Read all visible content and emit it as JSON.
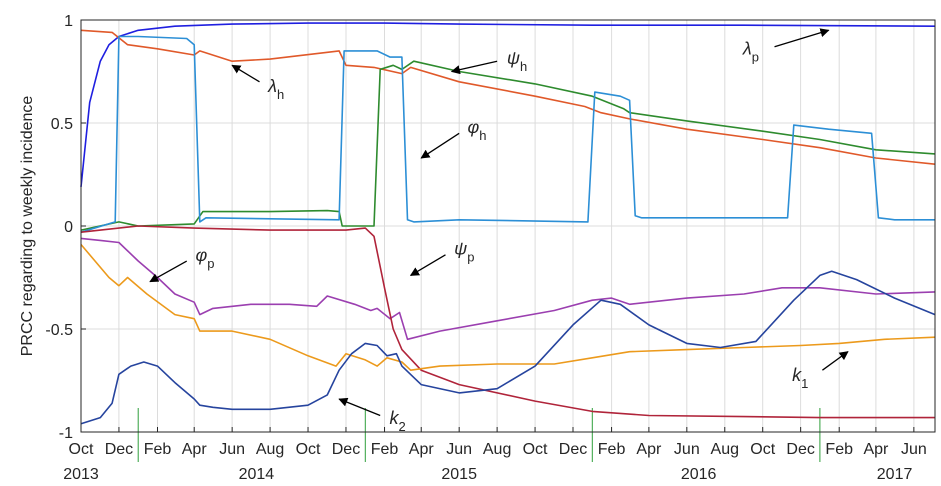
{
  "chart_data": {
    "type": "line",
    "title": "",
    "xlabel": "",
    "ylabel": "PRCC regarding to weekly incidence",
    "x_range": [
      "2013-10-01",
      "2017-07-05"
    ],
    "ylim": [
      -1,
      1
    ],
    "grid": true,
    "legend": "none",
    "y_ticks": [
      {
        "value": 1,
        "label": "1"
      },
      {
        "value": 0.5,
        "label": "0.5"
      },
      {
        "value": 0,
        "label": "0"
      },
      {
        "value": -0.5,
        "label": "-0.5"
      },
      {
        "value": -1,
        "label": "-1"
      }
    ],
    "x_ticks": [
      {
        "date": "2013-10-01",
        "label": "Oct"
      },
      {
        "date": "2013-12-01",
        "label": "Dec"
      },
      {
        "date": "2014-02-01",
        "label": "Feb"
      },
      {
        "date": "2014-04-01",
        "label": "Apr"
      },
      {
        "date": "2014-06-01",
        "label": "Jun"
      },
      {
        "date": "2014-08-01",
        "label": "Aug"
      },
      {
        "date": "2014-10-01",
        "label": "Oct"
      },
      {
        "date": "2014-12-01",
        "label": "Dec"
      },
      {
        "date": "2015-02-01",
        "label": "Feb"
      },
      {
        "date": "2015-04-01",
        "label": "Apr"
      },
      {
        "date": "2015-06-01",
        "label": "Jun"
      },
      {
        "date": "2015-08-01",
        "label": "Aug"
      },
      {
        "date": "2015-10-01",
        "label": "Oct"
      },
      {
        "date": "2015-12-01",
        "label": "Dec"
      },
      {
        "date": "2016-02-01",
        "label": "Feb"
      },
      {
        "date": "2016-04-01",
        "label": "Apr"
      },
      {
        "date": "2016-06-01",
        "label": "Jun"
      },
      {
        "date": "2016-08-01",
        "label": "Aug"
      },
      {
        "date": "2016-10-01",
        "label": "Oct"
      },
      {
        "date": "2016-12-01",
        "label": "Dec"
      },
      {
        "date": "2017-02-01",
        "label": "Feb"
      },
      {
        "date": "2017-04-01",
        "label": "Apr"
      },
      {
        "date": "2017-06-01",
        "label": "Jun"
      }
    ],
    "year_labels": [
      {
        "date": "2013-10-01",
        "label": "2013"
      },
      {
        "date": "2014-07-10",
        "label": "2014"
      },
      {
        "date": "2015-06-01",
        "label": "2015"
      },
      {
        "date": "2016-06-20",
        "label": "2016"
      },
      {
        "date": "2017-05-01",
        "label": "2017"
      }
    ],
    "year_markers": [
      "2014-01-01",
      "2015-01-01",
      "2016-01-01",
      "2017-01-01"
    ],
    "series": [
      {
        "name": "λp",
        "color": "#1f1fe0",
        "points": [
          [
            "2013-10-01",
            0.19
          ],
          [
            "2013-10-15",
            0.6
          ],
          [
            "2013-11-01",
            0.8
          ],
          [
            "2013-11-15",
            0.88
          ],
          [
            "2013-12-01",
            0.92
          ],
          [
            "2014-01-01",
            0.95
          ],
          [
            "2014-03-01",
            0.97
          ],
          [
            "2014-06-01",
            0.98
          ],
          [
            "2014-10-01",
            0.985
          ],
          [
            "2015-02-01",
            0.985
          ],
          [
            "2015-06-01",
            0.98
          ],
          [
            "2016-01-01",
            0.975
          ],
          [
            "2016-09-01",
            0.975
          ],
          [
            "2017-07-05",
            0.97
          ]
        ]
      },
      {
        "name": "λh",
        "color": "#e0592a",
        "points": [
          [
            "2013-10-01",
            0.95
          ],
          [
            "2013-11-20",
            0.94
          ],
          [
            "2013-12-15",
            0.88
          ],
          [
            "2014-02-01",
            0.86
          ],
          [
            "2014-04-01",
            0.83
          ],
          [
            "2014-04-10",
            0.85
          ],
          [
            "2014-06-01",
            0.8
          ],
          [
            "2014-08-01",
            0.81
          ],
          [
            "2014-11-20",
            0.85
          ],
          [
            "2014-12-01",
            0.78
          ],
          [
            "2015-01-15",
            0.77
          ],
          [
            "2015-03-01",
            0.74
          ],
          [
            "2015-03-15",
            0.77
          ],
          [
            "2015-06-01",
            0.7
          ],
          [
            "2015-10-01",
            0.63
          ],
          [
            "2015-12-20",
            0.58
          ],
          [
            "2016-01-15",
            0.55
          ],
          [
            "2016-03-01",
            0.52
          ],
          [
            "2016-06-01",
            0.47
          ],
          [
            "2016-10-01",
            0.42
          ],
          [
            "2017-01-01",
            0.38
          ],
          [
            "2017-04-01",
            0.33
          ],
          [
            "2017-07-05",
            0.3
          ]
        ]
      },
      {
        "name": "ψh",
        "color": "#2e8b2e",
        "points": [
          [
            "2013-10-01",
            -0.02
          ],
          [
            "2013-12-01",
            0.02
          ],
          [
            "2014-01-01",
            0.0
          ],
          [
            "2014-04-01",
            0.01
          ],
          [
            "2014-04-15",
            0.07
          ],
          [
            "2014-06-01",
            0.07
          ],
          [
            "2014-08-01",
            0.07
          ],
          [
            "2014-11-01",
            0.075
          ],
          [
            "2014-11-20",
            0.07
          ],
          [
            "2014-11-25",
            0.0
          ],
          [
            "2015-01-15",
            0.0
          ],
          [
            "2015-01-25",
            0.76
          ],
          [
            "2015-02-15",
            0.78
          ],
          [
            "2015-03-01",
            0.76
          ],
          [
            "2015-03-20",
            0.8
          ],
          [
            "2015-06-01",
            0.75
          ],
          [
            "2015-10-01",
            0.69
          ],
          [
            "2016-01-01",
            0.63
          ],
          [
            "2016-02-20",
            0.57
          ],
          [
            "2016-03-01",
            0.55
          ],
          [
            "2016-06-01",
            0.51
          ],
          [
            "2016-10-01",
            0.46
          ],
          [
            "2017-01-01",
            0.42
          ],
          [
            "2017-04-01",
            0.37
          ],
          [
            "2017-07-05",
            0.35
          ]
        ]
      },
      {
        "name": "φh",
        "color": "#2c8fd6",
        "points": [
          [
            "2013-10-01",
            -0.03
          ],
          [
            "2013-11-25",
            0.02
          ],
          [
            "2013-12-01",
            0.92
          ],
          [
            "2014-01-01",
            0.92
          ],
          [
            "2014-03-20",
            0.91
          ],
          [
            "2014-04-01",
            0.88
          ],
          [
            "2014-04-10",
            0.02
          ],
          [
            "2014-04-20",
            0.04
          ],
          [
            "2014-11-20",
            0.03
          ],
          [
            "2014-11-28",
            0.85
          ],
          [
            "2015-01-20",
            0.85
          ],
          [
            "2015-02-10",
            0.82
          ],
          [
            "2015-03-01",
            0.82
          ],
          [
            "2015-03-10",
            0.03
          ],
          [
            "2015-03-20",
            0.02
          ],
          [
            "2015-06-01",
            0.03
          ],
          [
            "2015-12-25",
            0.02
          ],
          [
            "2016-01-05",
            0.65
          ],
          [
            "2016-02-15",
            0.63
          ],
          [
            "2016-03-01",
            0.61
          ],
          [
            "2016-03-10",
            0.05
          ],
          [
            "2016-03-20",
            0.04
          ],
          [
            "2016-06-01",
            0.04
          ],
          [
            "2016-11-10",
            0.04
          ],
          [
            "2016-11-20",
            0.49
          ],
          [
            "2017-01-15",
            0.47
          ],
          [
            "2017-03-25",
            0.45
          ],
          [
            "2017-04-05",
            0.04
          ],
          [
            "2017-05-01",
            0.03
          ],
          [
            "2017-07-05",
            0.03
          ]
        ]
      },
      {
        "name": "φp",
        "color": "#9b3fb0",
        "points": [
          [
            "2013-10-01",
            -0.06
          ],
          [
            "2013-11-01",
            -0.07
          ],
          [
            "2013-12-01",
            -0.08
          ],
          [
            "2014-01-01",
            -0.17
          ],
          [
            "2014-02-01",
            -0.25
          ],
          [
            "2014-03-01",
            -0.33
          ],
          [
            "2014-04-01",
            -0.37
          ],
          [
            "2014-04-10",
            -0.43
          ],
          [
            "2014-05-01",
            -0.4
          ],
          [
            "2014-07-01",
            -0.38
          ],
          [
            "2014-09-01",
            -0.38
          ],
          [
            "2014-10-15",
            -0.39
          ],
          [
            "2014-11-01",
            -0.34
          ],
          [
            "2014-12-15",
            -0.38
          ],
          [
            "2015-01-10",
            -0.41
          ],
          [
            "2015-01-20",
            -0.4
          ],
          [
            "2015-02-10",
            -0.45
          ],
          [
            "2015-02-25",
            -0.42
          ],
          [
            "2015-03-10",
            -0.55
          ],
          [
            "2015-05-01",
            -0.51
          ],
          [
            "2015-08-01",
            -0.46
          ],
          [
            "2015-11-01",
            -0.41
          ],
          [
            "2016-01-01",
            -0.36
          ],
          [
            "2016-02-01",
            -0.35
          ],
          [
            "2016-03-01",
            -0.38
          ],
          [
            "2016-06-01",
            -0.35
          ],
          [
            "2016-09-01",
            -0.33
          ],
          [
            "2016-11-01",
            -0.3
          ],
          [
            "2017-01-01",
            -0.3
          ],
          [
            "2017-04-01",
            -0.33
          ],
          [
            "2017-07-05",
            -0.32
          ]
        ]
      },
      {
        "name": "ψp",
        "color": "#b0243a",
        "points": [
          [
            "2013-10-01",
            -0.03
          ],
          [
            "2013-12-01",
            -0.01
          ],
          [
            "2014-01-01",
            0.0
          ],
          [
            "2014-04-01",
            -0.01
          ],
          [
            "2014-08-01",
            -0.02
          ],
          [
            "2014-12-01",
            -0.02
          ],
          [
            "2015-01-01",
            -0.01
          ],
          [
            "2015-01-15",
            -0.05
          ],
          [
            "2015-02-01",
            -0.3
          ],
          [
            "2015-02-15",
            -0.5
          ],
          [
            "2015-03-01",
            -0.6
          ],
          [
            "2015-04-01",
            -0.7
          ],
          [
            "2015-06-01",
            -0.77
          ],
          [
            "2015-10-01",
            -0.85
          ],
          [
            "2016-01-01",
            -0.9
          ],
          [
            "2016-04-01",
            -0.92
          ],
          [
            "2016-09-01",
            -0.925
          ],
          [
            "2017-01-01",
            -0.93
          ],
          [
            "2017-07-05",
            -0.93
          ]
        ]
      },
      {
        "name": "k1",
        "color": "#ec9a1c",
        "points": [
          [
            "2013-10-01",
            -0.09
          ],
          [
            "2013-11-15",
            -0.25
          ],
          [
            "2013-12-01",
            -0.29
          ],
          [
            "2013-12-15",
            -0.25
          ],
          [
            "2014-01-15",
            -0.33
          ],
          [
            "2014-03-01",
            -0.43
          ],
          [
            "2014-04-01",
            -0.45
          ],
          [
            "2014-04-10",
            -0.51
          ],
          [
            "2014-06-01",
            -0.51
          ],
          [
            "2014-08-01",
            -0.55
          ],
          [
            "2014-10-01",
            -0.63
          ],
          [
            "2014-11-15",
            -0.68
          ],
          [
            "2014-12-01",
            -0.62
          ],
          [
            "2015-01-01",
            -0.65
          ],
          [
            "2015-01-20",
            -0.68
          ],
          [
            "2015-02-05",
            -0.64
          ],
          [
            "2015-03-01",
            -0.66
          ],
          [
            "2015-03-15",
            -0.7
          ],
          [
            "2015-05-01",
            -0.68
          ],
          [
            "2015-08-01",
            -0.67
          ],
          [
            "2015-11-01",
            -0.67
          ],
          [
            "2016-01-01",
            -0.64
          ],
          [
            "2016-03-01",
            -0.61
          ],
          [
            "2016-06-01",
            -0.6
          ],
          [
            "2016-09-01",
            -0.59
          ],
          [
            "2016-12-01",
            -0.58
          ],
          [
            "2017-02-01",
            -0.57
          ],
          [
            "2017-04-15",
            -0.55
          ],
          [
            "2017-07-05",
            -0.54
          ]
        ]
      },
      {
        "name": "k2",
        "color": "#26449e",
        "points": [
          [
            "2013-10-01",
            -0.96
          ],
          [
            "2013-11-01",
            -0.93
          ],
          [
            "2013-11-20",
            -0.86
          ],
          [
            "2013-12-01",
            -0.72
          ],
          [
            "2013-12-20",
            -0.68
          ],
          [
            "2014-01-10",
            -0.66
          ],
          [
            "2014-02-01",
            -0.68
          ],
          [
            "2014-03-01",
            -0.76
          ],
          [
            "2014-04-01",
            -0.84
          ],
          [
            "2014-04-10",
            -0.87
          ],
          [
            "2014-05-01",
            -0.88
          ],
          [
            "2014-06-01",
            -0.89
          ],
          [
            "2014-08-01",
            -0.89
          ],
          [
            "2014-10-01",
            -0.87
          ],
          [
            "2014-11-01",
            -0.82
          ],
          [
            "2014-11-20",
            -0.7
          ],
          [
            "2014-12-10",
            -0.62
          ],
          [
            "2015-01-01",
            -0.57
          ],
          [
            "2015-01-20",
            -0.58
          ],
          [
            "2015-02-05",
            -0.63
          ],
          [
            "2015-02-20",
            -0.62
          ],
          [
            "2015-03-01",
            -0.68
          ],
          [
            "2015-04-01",
            -0.77
          ],
          [
            "2015-06-01",
            -0.81
          ],
          [
            "2015-08-01",
            -0.79
          ],
          [
            "2015-10-01",
            -0.68
          ],
          [
            "2015-12-01",
            -0.48
          ],
          [
            "2016-01-15",
            -0.36
          ],
          [
            "2016-02-15",
            -0.38
          ],
          [
            "2016-04-01",
            -0.48
          ],
          [
            "2016-06-01",
            -0.57
          ],
          [
            "2016-07-25",
            -0.59
          ],
          [
            "2016-09-20",
            -0.56
          ],
          [
            "2016-11-20",
            -0.36
          ],
          [
            "2017-01-01",
            -0.24
          ],
          [
            "2017-01-20",
            -0.22
          ],
          [
            "2017-03-01",
            -0.26
          ],
          [
            "2017-05-01",
            -0.35
          ],
          [
            "2017-07-05",
            -0.43
          ]
        ]
      }
    ],
    "annotations": [
      {
        "symbol": "ψ",
        "sub": "h",
        "arrow_from": [
          "2015-08-01",
          0.8
        ],
        "arrow_to": [
          "2015-05-20",
          0.75
        ]
      },
      {
        "symbol": "λ",
        "sub": "p",
        "arrow_from": [
          "2016-10-20",
          0.87
        ],
        "arrow_to": [
          "2017-01-15",
          0.95
        ]
      },
      {
        "symbol": "λ",
        "sub": "h",
        "arrow_from": [
          "2014-07-15",
          0.7
        ],
        "arrow_to": [
          "2014-06-01",
          0.78
        ]
      },
      {
        "symbol": "φ",
        "sub": "h",
        "arrow_from": [
          "2015-06-01",
          0.45
        ],
        "arrow_to": [
          "2015-04-01",
          0.33
        ]
      },
      {
        "symbol": "φ",
        "sub": "p",
        "arrow_from": [
          "2014-03-20",
          -0.17
        ],
        "arrow_to": [
          "2014-01-20",
          -0.27
        ]
      },
      {
        "symbol": "ψ",
        "sub": "p",
        "arrow_from": [
          "2015-05-10",
          -0.14
        ],
        "arrow_to": [
          "2015-03-15",
          -0.24
        ]
      },
      {
        "symbol": "k",
        "sub": "2",
        "arrow_from": [
          "2015-01-25",
          -0.92
        ],
        "arrow_to": [
          "2014-11-20",
          -0.84
        ]
      },
      {
        "symbol": "k",
        "sub": "1",
        "arrow_from": [
          "2017-01-05",
          -0.7
        ],
        "arrow_to": [
          "2017-02-15",
          -0.61
        ]
      }
    ]
  }
}
